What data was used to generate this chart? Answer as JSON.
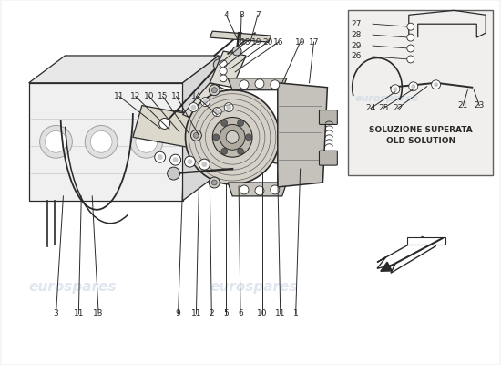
{
  "bg_color": "#f5f5f5",
  "white": "#ffffff",
  "line_color": "#2a2a2a",
  "light_gray": "#c8c8c8",
  "mid_gray": "#a0a0a0",
  "dark_gray": "#606060",
  "inset_bg": "#e8e8e8",
  "wm_color": "#c0cfe0",
  "wm_alpha": 0.5,
  "wm_text": "eurospares",
  "lbl1": "SOLUZIONE SUPERATA",
  "lbl2": "OLD SOLUTION",
  "lw": 0.9,
  "lfs": 6.5,
  "wm_fs": 11
}
